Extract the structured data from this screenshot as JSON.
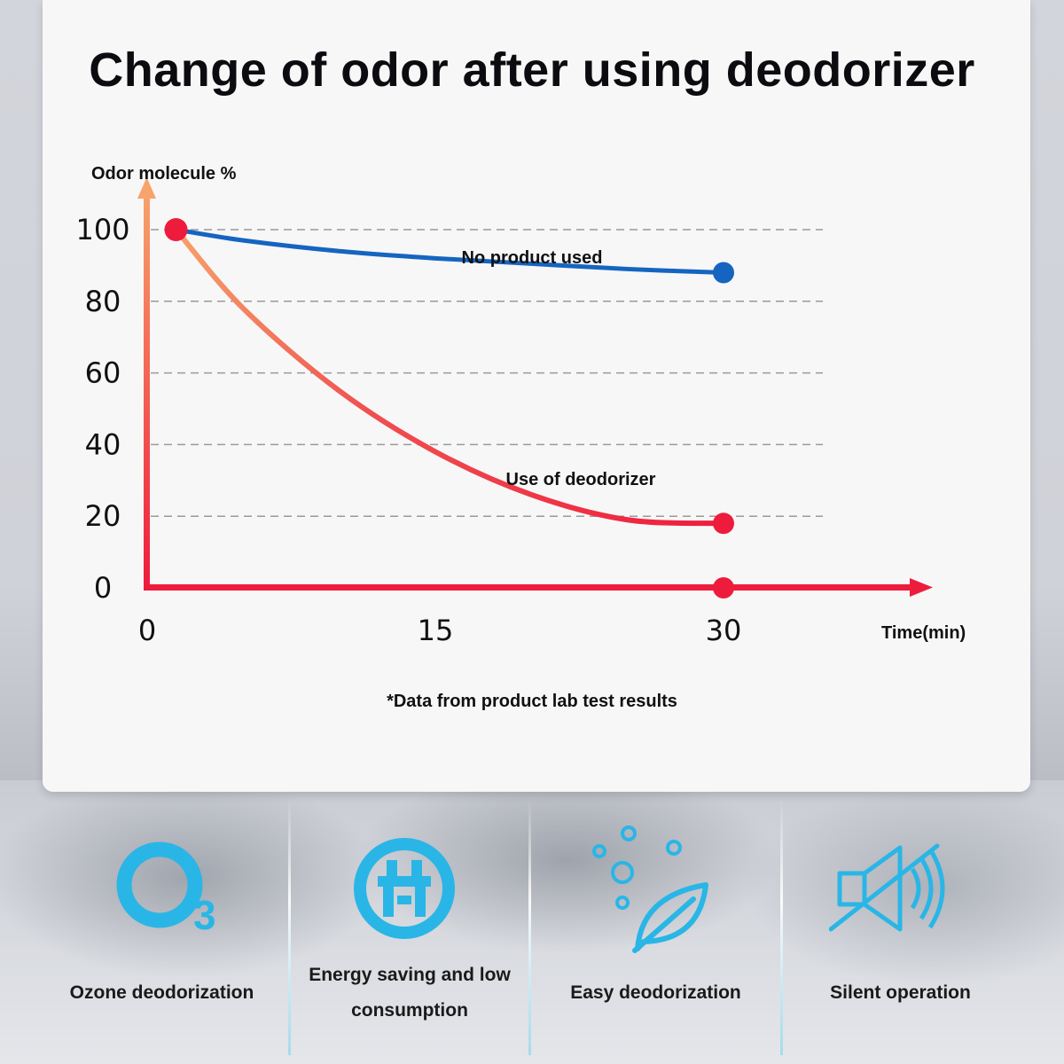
{
  "title": "Change of odor after using deodorizer",
  "note": "*Data from product lab test results",
  "chart_data": {
    "type": "line",
    "ylabel": "Odor molecule %",
    "xlabel": "Time(min)",
    "x_ticks": [
      "0",
      "15",
      "30"
    ],
    "y_ticks": [
      "0",
      "20",
      "40",
      "60",
      "80",
      "100"
    ],
    "xlim": [
      0,
      30
    ],
    "ylim": [
      0,
      100
    ],
    "grid": "dashed horizontal",
    "series": [
      {
        "name": "No product used",
        "color": "#1565c0",
        "points": [
          [
            1.5,
            100
          ],
          [
            5,
            97
          ],
          [
            10,
            94
          ],
          [
            15,
            92
          ],
          [
            20,
            90.5
          ],
          [
            25,
            89
          ],
          [
            30,
            88
          ]
        ]
      },
      {
        "name": "Use of deodorizer",
        "color": "#ee1c3c",
        "points": [
          [
            1.5,
            100
          ],
          [
            5,
            78
          ],
          [
            10,
            55
          ],
          [
            15,
            38
          ],
          [
            20,
            26
          ],
          [
            25,
            19
          ],
          [
            30,
            18
          ]
        ]
      }
    ],
    "axis_end_marker": [
      30,
      0
    ]
  },
  "colors": {
    "accent": "#29b6e6",
    "axis_x": "#ee1c3c",
    "axis_y_top": "#f7a36b"
  },
  "features": [
    {
      "icon": "ozone-icon",
      "label_lines": [
        "Ozone deodorization"
      ]
    },
    {
      "icon": "energy-saving-icon",
      "label_lines": [
        "Energy saving and low",
        "consumption"
      ]
    },
    {
      "icon": "leaf-bubbles-icon",
      "label_lines": [
        "Easy deodorization"
      ]
    },
    {
      "icon": "mute-speaker-icon",
      "label_lines": [
        "Silent operation"
      ]
    }
  ]
}
